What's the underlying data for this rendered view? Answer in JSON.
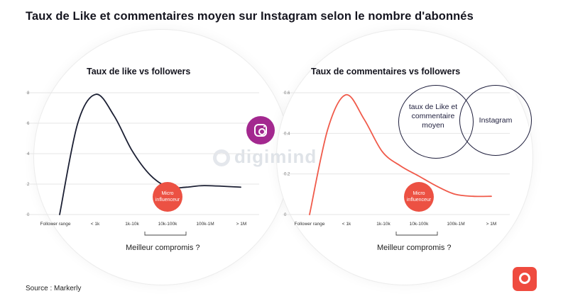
{
  "title": "Taux de Like et commentaires moyen sur Instagram selon le nombre d'abonnés",
  "source": "Source : Markerly",
  "watermark": "digimind",
  "icons": {
    "instagram": "instagram-logo-icon",
    "brand": "digimind-logo-icon"
  },
  "colors": {
    "left_line": "#1b1f33",
    "right_line": "#f05a4a",
    "micro_badge": "#ec5143",
    "instagram": "#a3288f",
    "brand": "#ef4b3f"
  },
  "micro_label": {
    "line1": "Micro",
    "line2": "influenceur"
  },
  "caption": "Meilleur compromis ?",
  "venn": {
    "left": "taux de Like et commentaire moyen",
    "right": "Instagram"
  },
  "chart_data": [
    {
      "type": "line",
      "title": "Taux de like vs followers",
      "xlabel": "",
      "ylabel": "",
      "categories": [
        "Follower range",
        "< 1k",
        "1k-10k",
        "10k-100k",
        "100k-1M",
        "> 1M"
      ],
      "yticks": [
        "0",
        "2",
        "4",
        "6",
        "8"
      ],
      "ylim": [
        0,
        8
      ],
      "grid": true,
      "series": [
        {
          "x": [
            0,
            0.5,
            1.0,
            1.5,
            2.0,
            2.5,
            3.0,
            3.5,
            4.0,
            5.0
          ],
          "y": [
            0,
            6.0,
            7.9,
            6.5,
            4.2,
            2.6,
            1.8,
            1.8,
            1.9,
            1.8
          ]
        }
      ]
    },
    {
      "type": "line",
      "title": "Taux de commentaires vs followers",
      "xlabel": "",
      "ylabel": "",
      "categories": [
        "Follower range",
        "< 1k",
        "1k-10k",
        "10k-100k",
        "100k-1M",
        "> 1M"
      ],
      "yticks": [
        "0",
        "0.2",
        "0.4",
        "0.6"
      ],
      "ylim": [
        0,
        0.6
      ],
      "grid": true,
      "series": [
        {
          "x": [
            0,
            0.5,
            1.0,
            1.5,
            2.0,
            2.5,
            3.0,
            3.5,
            4.0,
            4.5,
            5.0
          ],
          "y": [
            0,
            0.42,
            0.59,
            0.47,
            0.31,
            0.24,
            0.19,
            0.14,
            0.1,
            0.09,
            0.09
          ]
        }
      ]
    }
  ]
}
